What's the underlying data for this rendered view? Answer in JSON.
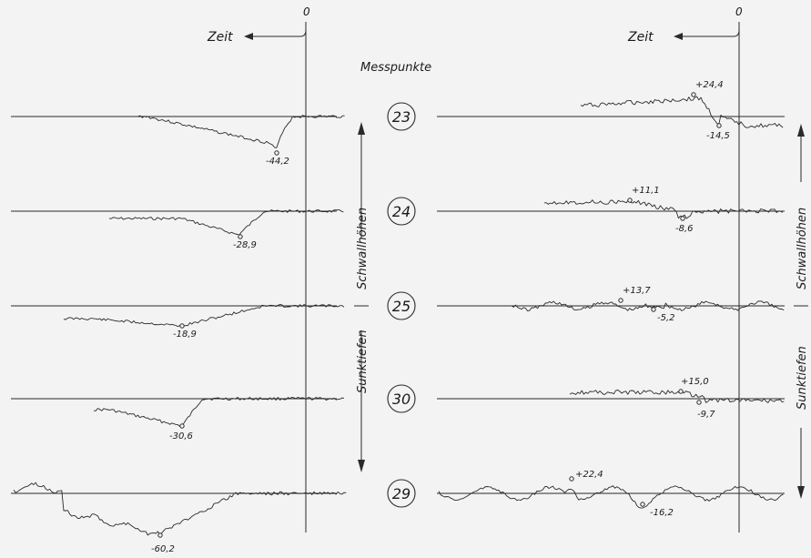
{
  "chart_data": {
    "type": "line",
    "title": "",
    "header": "Messpunkte",
    "axis_label_time": "Zeit",
    "zero_label": "0",
    "y_axis_up": "Schwallhöhen",
    "y_axis_down": "Sunktiefen",
    "panels": [
      {
        "measuring_point": "23",
        "left": {
          "extremes": [
            {
              "label": "-44,2",
              "value": -44.2
            }
          ]
        },
        "right": {
          "extremes": [
            {
              "label": "+24,4",
              "value": 24.4
            },
            {
              "label": "-14,5",
              "value": -14.5
            }
          ]
        }
      },
      {
        "measuring_point": "24",
        "left": {
          "extremes": [
            {
              "label": "-28,9",
              "value": -28.9
            }
          ]
        },
        "right": {
          "extremes": [
            {
              "label": "+11,1",
              "value": 11.1
            },
            {
              "label": "-8,6",
              "value": -8.6
            }
          ]
        }
      },
      {
        "measuring_point": "25",
        "left": {
          "extremes": [
            {
              "label": "-18,9",
              "value": -18.9
            }
          ]
        },
        "right": {
          "extremes": [
            {
              "label": "+13,7",
              "value": 13.7
            },
            {
              "label": "-5,2",
              "value": -5.2
            }
          ]
        }
      },
      {
        "measuring_point": "30",
        "left": {
          "extremes": [
            {
              "label": "-30,6",
              "value": -30.6
            }
          ]
        },
        "right": {
          "extremes": [
            {
              "label": "+15,0",
              "value": 15.0
            },
            {
              "label": "-9,7",
              "value": -9.7
            }
          ]
        }
      },
      {
        "measuring_point": "29",
        "left": {
          "extremes": [
            {
              "label": "-60,2",
              "value": -60.2
            }
          ]
        },
        "right": {
          "extremes": [
            {
              "label": "+22,4",
              "value": 22.4
            },
            {
              "label": "-16,2",
              "value": -16.2
            }
          ]
        }
      }
    ]
  }
}
